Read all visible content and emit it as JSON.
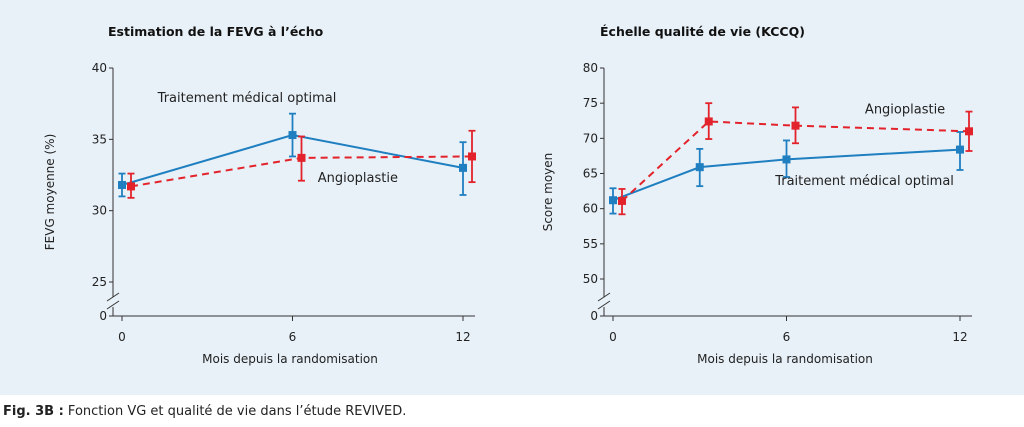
{
  "caption": {
    "label": "Fig. 3B :",
    "text": " Fonction VG et qualité de vie dans l’étude REVIVED."
  },
  "colors": {
    "tmo": "#1f7fc0",
    "angio": "#e3232b"
  },
  "chart_data": [
    {
      "type": "line",
      "title": "Estimation de la FEVG à l’écho",
      "xlabel": "Mois depuis la randomisation",
      "ylabel": "FEVG moyenne (%)",
      "x_ticks": [
        0,
        6,
        12
      ],
      "y_ticks": [
        0,
        25,
        30,
        35,
        40
      ],
      "y_break": true,
      "xlim": [
        0,
        12
      ],
      "ylim": [
        25,
        40
      ],
      "series": [
        {
          "name": "Traitement médical optimal",
          "style": "solid",
          "color": "#1f7fc0",
          "points": [
            {
              "x": 0,
              "y": 31.8,
              "lo": 31.0,
              "hi": 32.6
            },
            {
              "x": 6,
              "y": 35.3,
              "lo": 33.8,
              "hi": 36.8
            },
            {
              "x": 12,
              "y": 33.0,
              "lo": 31.1,
              "hi": 34.8
            }
          ]
        },
        {
          "name": "Angioplastie",
          "style": "dashed",
          "color": "#e3232b",
          "points": [
            {
              "x": 0,
              "y": 31.7,
              "lo": 30.9,
              "hi": 32.6
            },
            {
              "x": 6,
              "y": 33.7,
              "lo": 32.1,
              "hi": 35.2
            },
            {
              "x": 12,
              "y": 33.8,
              "lo": 32.0,
              "hi": 35.6
            }
          ]
        }
      ],
      "annotations": [
        {
          "text": "Traitement médical optimal",
          "x": 4.4,
          "y": 37.6
        },
        {
          "text": "Angioplastie",
          "x": 8.3,
          "y": 32.0
        }
      ]
    },
    {
      "type": "line",
      "title": "Échelle qualité de vie (KCCQ)",
      "xlabel": "Mois depuis la randomisation",
      "ylabel": "Score moyen",
      "x_ticks": [
        0,
        6,
        12
      ],
      "y_ticks": [
        0,
        50,
        55,
        60,
        65,
        70,
        75,
        80
      ],
      "y_break": true,
      "xlim": [
        0,
        12
      ],
      "ylim": [
        50,
        80
      ],
      "series": [
        {
          "name": "Traitement médical optimal",
          "style": "solid",
          "color": "#1f7fc0",
          "points": [
            {
              "x": 0,
              "y": 61.2,
              "lo": 59.3,
              "hi": 62.9
            },
            {
              "x": 3,
              "y": 65.9,
              "lo": 63.2,
              "hi": 68.5
            },
            {
              "x": 6,
              "y": 67.0,
              "lo": 64.5,
              "hi": 69.7
            },
            {
              "x": 12,
              "y": 68.4,
              "lo": 65.5,
              "hi": 70.9
            }
          ]
        },
        {
          "name": "Angioplastie",
          "style": "dashed",
          "color": "#e3232b",
          "points": [
            {
              "x": 0,
              "y": 61.1,
              "lo": 59.2,
              "hi": 62.8
            },
            {
              "x": 3,
              "y": 72.4,
              "lo": 69.9,
              "hi": 75.0
            },
            {
              "x": 6,
              "y": 71.8,
              "lo": 69.3,
              "hi": 74.4
            },
            {
              "x": 12,
              "y": 71.0,
              "lo": 68.2,
              "hi": 73.8
            }
          ]
        }
      ],
      "annotations": [
        {
          "text": "Angioplastie",
          "x": 10.1,
          "y": 73.5
        },
        {
          "text": "Traitement médical optimal",
          "x": 8.7,
          "y": 63.4
        }
      ]
    }
  ]
}
